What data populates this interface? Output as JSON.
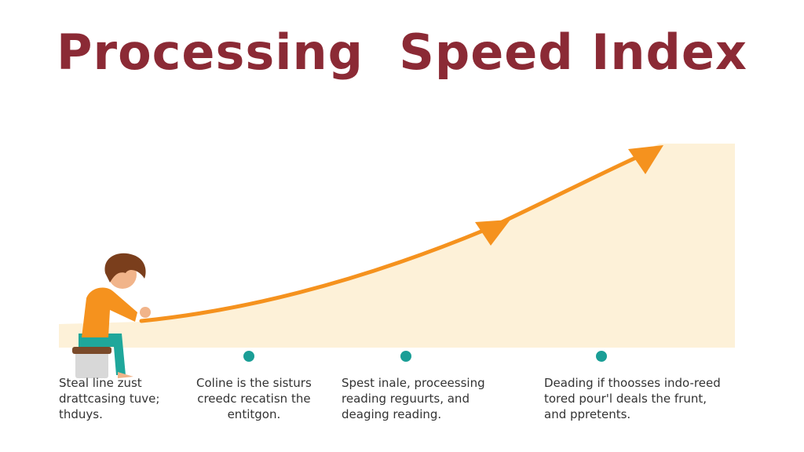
{
  "title": "Processing  Speed Index",
  "colors": {
    "title": "#8b2a35",
    "curve": "#f5921e",
    "fill": "#fdf1d8",
    "dot": "#1a9e96"
  },
  "illustration": {
    "figure": "child-sitting-on-stool",
    "icons": [
      "arrowhead-icon",
      "arrowhead-icon"
    ]
  },
  "captions": [
    {
      "text": "Steal line zust\ndrattcasing tuve;\nthduys."
    },
    {
      "text": "Coline is the sisturs\ncreedc recatisn the\nentitgon."
    },
    {
      "text": "Spest inale, proceessing\nreading reguurts, and\ndeaging reading."
    },
    {
      "text": "Deading if thoosses indo-reed\ntored pour'l deals the frunt,\nand ppretents."
    }
  ]
}
